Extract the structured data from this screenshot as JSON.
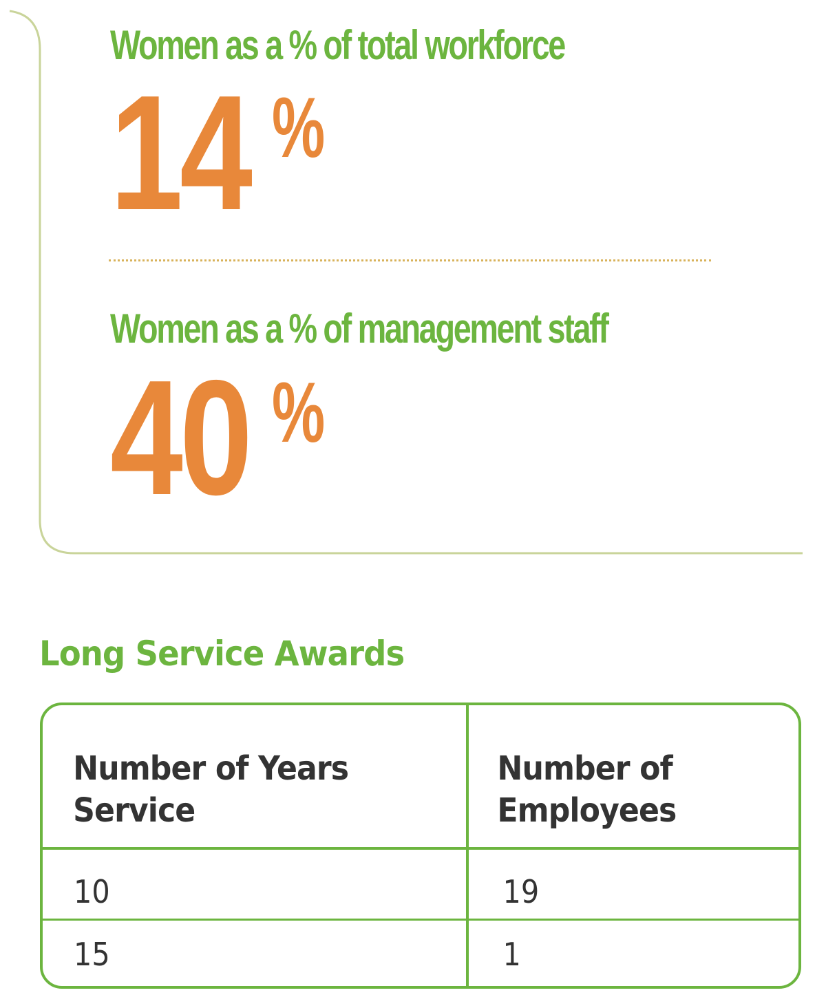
{
  "colors": {
    "heading_green": "#6cb53f",
    "value_orange": "#e8883a",
    "divider_gold": "#d8b25a",
    "panel_border": "#c9d49a",
    "table_text": "#333333"
  },
  "stats": [
    {
      "heading": "Women as a % of total workforce",
      "number": "14",
      "percent_sign": "%"
    },
    {
      "heading": "Women as a % of management staff",
      "number": "40",
      "percent_sign": "%"
    }
  ],
  "long_service_awards": {
    "title": "Long Service Awards",
    "columns": [
      [
        "Number of Years",
        "Service"
      ],
      [
        "Number of",
        "Employees"
      ]
    ],
    "rows": [
      [
        "10",
        "19"
      ],
      [
        "15",
        "1"
      ]
    ]
  }
}
